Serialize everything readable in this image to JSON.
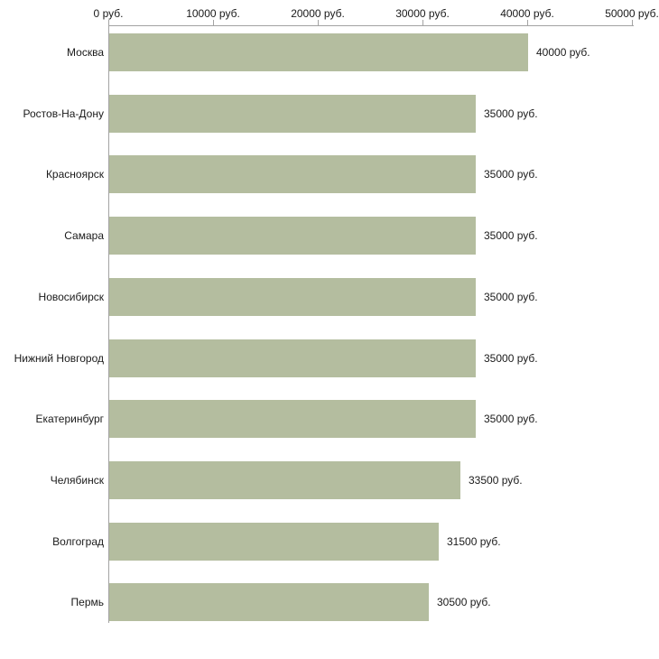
{
  "chart_data": {
    "type": "bar",
    "orientation": "horizontal",
    "title": "",
    "categories": [
      "Москва",
      "Ростов-На-Дону",
      "Красноярск",
      "Самара",
      "Новосибирск",
      "Нижний Новгород",
      "Екатеринбург",
      "Челябинск",
      "Волгоград",
      "Пермь"
    ],
    "values": [
      40000,
      35000,
      35000,
      35000,
      35000,
      35000,
      35000,
      33500,
      31500,
      30500
    ],
    "value_labels": [
      "40000 руб.",
      "35000 руб.",
      "35000 руб.",
      "35000 руб.",
      "35000 руб.",
      "35000 руб.",
      "35000 руб.",
      "33500 руб.",
      "31500 руб.",
      "30500 руб."
    ],
    "x_axis": {
      "position": "top",
      "min": 0,
      "max": 50000,
      "tick_values": [
        0,
        10000,
        20000,
        30000,
        40000,
        50000
      ],
      "tick_labels": [
        "0 руб.",
        "10000 руб.",
        "20000 руб.",
        "30000 руб.",
        "40000 руб.",
        "50000 руб."
      ]
    },
    "unit": "руб.",
    "grid": false,
    "legend": false,
    "colors": {
      "bar": "#b4bd9f",
      "axis": "#a3a3a3",
      "text": "#1a1a1a",
      "background": "#ffffff"
    }
  }
}
